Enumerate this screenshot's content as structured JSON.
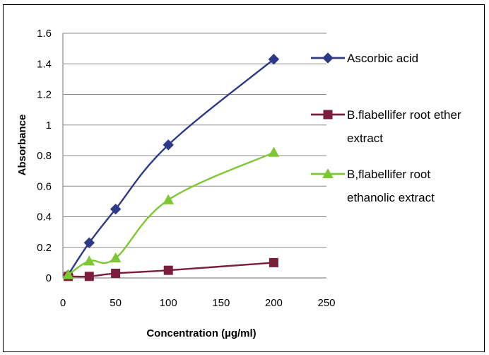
{
  "chart_data": {
    "type": "line",
    "title": "",
    "xlabel": "Concentration (µg/ml)",
    "ylabel": "Absorbance",
    "xlim": [
      0,
      250
    ],
    "ylim": [
      0,
      1.6
    ],
    "xticks": [
      0,
      50,
      100,
      150,
      200,
      250
    ],
    "yticks": [
      0,
      0.2,
      0.4,
      0.6,
      0.8,
      1,
      1.2,
      1.4,
      1.6
    ],
    "xtick_labels": [
      "0",
      "50",
      "100",
      "150",
      "200",
      "250"
    ],
    "ytick_labels": [
      "0",
      "0.2",
      "0.4",
      "0.6",
      "0.8",
      "1",
      "1.2",
      "1.4",
      "1.6"
    ],
    "grid": "horizontal",
    "legend_position": "right",
    "series": [
      {
        "name": "Ascorbic acid",
        "color": "#2E3A87",
        "marker": "diamond",
        "x": [
          5,
          25,
          50,
          100,
          200
        ],
        "y": [
          0.02,
          0.23,
          0.45,
          0.87,
          1.43
        ]
      },
      {
        "name": "B.flabellifer root ether extract",
        "legend_lines": [
          "B.flabellifer root ether",
          "extract"
        ],
        "color": "#7B1E3A",
        "marker": "square",
        "x": [
          5,
          25,
          50,
          100,
          200
        ],
        "y": [
          0.01,
          0.01,
          0.03,
          0.05,
          0.1
        ]
      },
      {
        "name": "B,flabellifer root ethanolic extract",
        "legend_lines": [
          "B,flabellifer root",
          "ethanolic extract"
        ],
        "color": "#7DC832",
        "marker": "triangle",
        "x": [
          5,
          25,
          50,
          100,
          200
        ],
        "y": [
          0.02,
          0.11,
          0.13,
          0.51,
          0.82
        ]
      }
    ]
  }
}
